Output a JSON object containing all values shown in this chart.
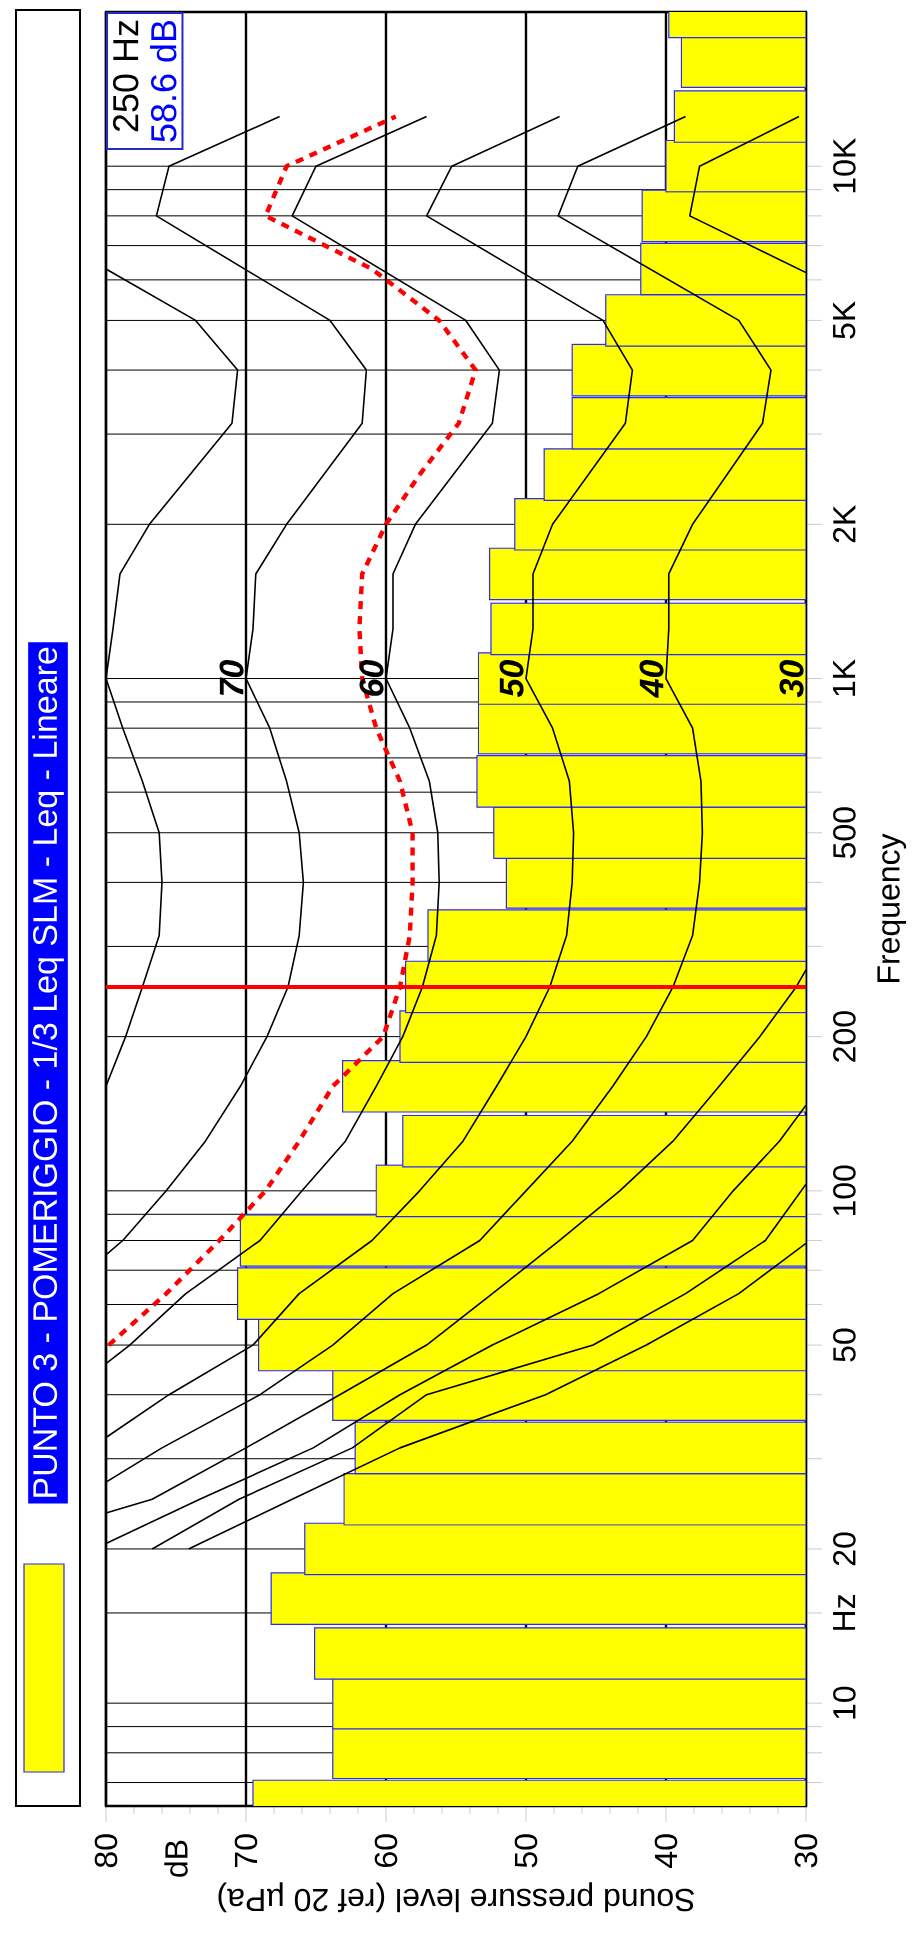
{
  "chart_data": {
    "type": "bar",
    "orientation": "horizontal",
    "title": "PUNTO 3 - POMERIGGIO - 1/3 Leq SLM - Leq - Lineare",
    "xlabel": "Sound pressure level (ref 20 µPa)",
    "ylabel": "Frequency",
    "log": "y",
    "grid": true,
    "xlim": [
      80,
      30
    ],
    "ylim": [
      6.3,
      20000
    ],
    "xticks": [
      80,
      70,
      60,
      50,
      40,
      30
    ],
    "yticks": [
      {
        "value": 7,
        "label": null
      },
      {
        "value": 8,
        "label": null
      },
      {
        "value": 9,
        "label": null
      },
      10,
      {
        "value": 15,
        "label": "Hz"
      },
      20,
      {
        "value": 30,
        "label": null
      },
      {
        "value": 40,
        "label": null
      },
      50,
      {
        "value": 60,
        "label": null
      },
      {
        "value": 70,
        "label": null
      },
      {
        "value": 80,
        "label": null
      },
      {
        "value": 90,
        "label": null
      },
      100,
      200,
      {
        "value": 300,
        "label": null
      },
      {
        "value": 400,
        "label": null
      },
      500,
      {
        "value": 600,
        "label": null
      },
      {
        "value": 700,
        "label": null
      },
      {
        "value": 800,
        "label": null
      },
      {
        "value": 900,
        "label": null
      },
      {
        "value": 1000,
        "label": "1K"
      },
      {
        "value": 2000,
        "label": "2K"
      },
      {
        "value": 3000,
        "label": null
      },
      {
        "value": 4000,
        "label": null
      },
      {
        "value": 5000,
        "label": "5K"
      },
      {
        "value": 6000,
        "label": null
      },
      {
        "value": 7000,
        "label": null
      },
      {
        "value": 8000,
        "label": null
      },
      {
        "value": 9000,
        "label": null
      },
      {
        "value": 10000,
        "label": "10K"
      }
    ],
    "x": [
      6.3,
      8,
      10,
      12.5,
      16,
      20,
      25,
      31.5,
      40,
      50,
      63,
      80,
      100,
      125,
      160,
      200,
      250,
      315,
      400,
      500,
      630,
      800,
      1000,
      1250,
      1600,
      2000,
      2500,
      3150,
      4000,
      5000,
      6300,
      8000,
      10000,
      12500,
      16000,
      20000
    ],
    "series": [
      {
        "color": "#ffff00",
        "values": [
          69.5,
          63.8,
          63.8,
          65.1,
          68.2,
          65.8,
          63.0,
          62.2,
          63.8,
          69.1,
          70.6,
          70.4,
          60.7,
          58.8,
          63.1,
          59.0,
          58.6,
          57.0,
          51.4,
          52.3,
          53.5,
          53.4,
          53.4,
          52.5,
          52.6,
          50.8,
          48.7,
          46.7,
          46.7,
          44.3,
          41.8,
          41.7,
          40.0,
          39.4,
          38.9,
          39.8
        ]
      },
      {
        "type": "line",
        "color": "#000000",
        "x": [
          160,
          200,
          250,
          315,
          400,
          500,
          630,
          800,
          1000,
          1250,
          1600,
          2000,
          3150,
          4000,
          5000,
          6300
        ],
        "values": [
          80,
          78.6,
          77.4,
          76.2,
          76.0,
          76.2,
          77.4,
          78.8,
          80,
          79.5,
          79.0,
          76.9,
          71.0,
          70.6,
          73.6,
          80
        ]
      },
      {
        "type": "line",
        "color": "#000000",
        "x": [
          75,
          80,
          100,
          125,
          160,
          200,
          250,
          315,
          400,
          500,
          630,
          800,
          1000,
          1250,
          1600,
          2000,
          3150,
          4000,
          5000,
          8000,
          10000,
          12500
        ],
        "values": [
          80,
          78.8,
          75.7,
          72.9,
          70.4,
          68.5,
          67.0,
          66.2,
          65.9,
          66.2,
          67.1,
          68.3,
          70,
          69.5,
          69.3,
          67.1,
          61.7,
          61.4,
          64.0,
          76.4,
          75.5,
          67.6
        ]
      },
      {
        "type": "line",
        "color": "#000000",
        "x": [
          46,
          50,
          63,
          80,
          100,
          125,
          160,
          200,
          250,
          315,
          400,
          500,
          630,
          800,
          1000,
          1250,
          1600,
          2000,
          3150,
          4000,
          5000,
          8000,
          10000,
          12500
        ],
        "values": [
          80,
          78.3,
          74.3,
          69.0,
          66.0,
          62.9,
          60.7,
          58.8,
          57.4,
          56.4,
          56.2,
          56.3,
          56.9,
          58.3,
          60,
          59.5,
          59.5,
          57.9,
          52.4,
          51.9,
          54.3,
          66.7,
          65.0,
          57.1
        ]
      },
      {
        "type": "line",
        "color": "#000000",
        "x": [
          33,
          40,
          50,
          63,
          80,
          100,
          125,
          160,
          200,
          250,
          315,
          400,
          500,
          630,
          800,
          1000,
          1250,
          1600,
          2000,
          3150,
          4000,
          5000,
          8000,
          10000,
          12500
        ],
        "values": [
          80,
          75.5,
          69.5,
          66.2,
          61.0,
          57.6,
          54.5,
          52.1,
          50.0,
          48.3,
          47.1,
          46.7,
          46.6,
          46.9,
          48.1,
          50,
          49.5,
          49.5,
          48.1,
          42.9,
          42.4,
          44.5,
          57.1,
          55.3,
          47.6
        ]
      },
      {
        "type": "line",
        "color": "#000000",
        "x": [
          27,
          31.5,
          40,
          50,
          63,
          80,
          100,
          125,
          160,
          200,
          250,
          315,
          400,
          500,
          630,
          800,
          1000,
          1250,
          1600,
          2000,
          3150,
          4000,
          5000,
          8000,
          10000,
          12500
        ],
        "values": [
          80,
          76.0,
          69.0,
          63.8,
          59.5,
          53.3,
          50.0,
          46.7,
          43.8,
          41.4,
          39.5,
          38.1,
          37.6,
          37.4,
          37.5,
          38.1,
          40,
          39.8,
          39.8,
          38.1,
          33.1,
          32.5,
          34.8,
          47.7,
          46.3,
          38.6
        ]
      },
      {
        "type": "line",
        "color": "#000000",
        "x": [
          23.5,
          25,
          31.5,
          40,
          50,
          63,
          80,
          100,
          125,
          160,
          200,
          250,
          270,
          2000,
          6200,
          8000,
          10000,
          12500
        ],
        "values": [
          80,
          76.7,
          70.0,
          63.3,
          57.1,
          52.4,
          47.6,
          43.3,
          39.5,
          36.2,
          33.3,
          30.7,
          30,
          null,
          30,
          38.3,
          37.6,
          30.5
        ]
      },
      {
        "type": "line",
        "color": "#000000",
        "x": [
          20.5,
          25,
          31.5,
          40,
          50,
          63,
          80,
          100,
          125,
          147
        ],
        "values": [
          80,
          73.3,
          65.2,
          59.0,
          52.4,
          44.8,
          38.1,
          35.2,
          31.9,
          30
        ]
      },
      {
        "type": "line",
        "color": "#000000",
        "x": [
          20,
          25,
          31.5,
          40,
          50,
          63,
          80,
          103
        ],
        "values": [
          76.7,
          70.5,
          62.4,
          57.1,
          45.2,
          38.6,
          32.9,
          30
        ]
      },
      {
        "type": "line",
        "color": "#000000",
        "x": [
          20,
          25,
          31.5,
          40,
          50,
          63,
          79
        ],
        "values": [
          74.1,
          66.7,
          59.0,
          48.6,
          41.4,
          34.8,
          30
        ]
      },
      {
        "type": "line",
        "color": "#ff0000",
        "line_style": "dashed",
        "x": [
          50,
          63,
          80,
          100,
          125,
          160,
          200,
          250,
          315,
          400,
          500,
          630,
          800,
          1000,
          1250,
          1600,
          2000,
          2500,
          3150,
          4000,
          5000,
          6300,
          8000,
          10000,
          12500
        ],
        "values": [
          79.8,
          75.7,
          71.9,
          68.6,
          66.2,
          63.8,
          60.2,
          59.0,
          58.3,
          58.1,
          58.1,
          59.0,
          60.7,
          61.7,
          61.9,
          61.7,
          60.0,
          57.6,
          54.8,
          53.6,
          56.2,
          61.0,
          68.6,
          67.1,
          59.3
        ]
      }
    ],
    "ref_lines": [
      {
        "axis": "y",
        "value": 250,
        "color": "#ff0000"
      }
    ],
    "annotations": [
      {
        "text": "70",
        "x": 70,
        "y": 1000
      },
      {
        "text": "60",
        "x": 60,
        "y": 1000
      },
      {
        "text": "50",
        "x": 50,
        "y": 1000
      },
      {
        "text": "40",
        "x": 40,
        "y": 1000
      },
      {
        "text": "30",
        "x": 30,
        "y": 1000
      },
      "dB",
      "250 Hz",
      "58.6 dB"
    ]
  }
}
